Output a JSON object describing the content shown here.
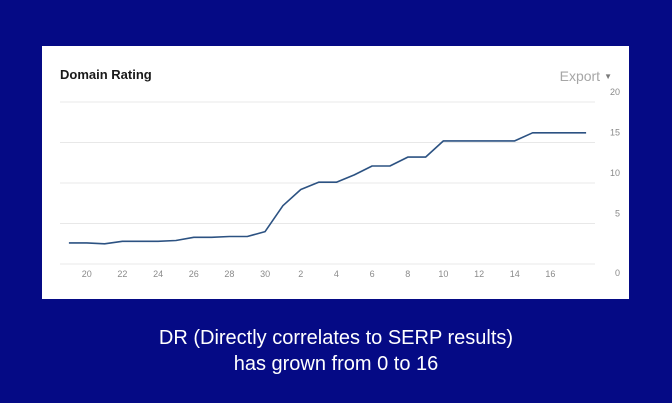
{
  "card": {
    "title": "Domain Rating",
    "export_label": "Export",
    "export_caret": "▼"
  },
  "caption": {
    "line1": "DR (Directly correlates to SERP results)",
    "line2": "has grown from 0 to 16"
  },
  "colors": {
    "background": "#050a85",
    "line": "#2c5282",
    "grid": "#e8e8e8"
  },
  "chart_data": {
    "type": "line",
    "title": "Domain Rating",
    "xlabel": "",
    "ylabel": "",
    "ylim": [
      0,
      20
    ],
    "y_ticks": [
      20,
      15,
      10,
      5,
      0
    ],
    "y_axis_side": "right",
    "grid": true,
    "x_tick_labels": [
      "20",
      "22",
      "24",
      "26",
      "28",
      "30",
      "2",
      "4",
      "6",
      "8",
      "10",
      "12",
      "14",
      "16"
    ],
    "x_tick_index": [
      1,
      3,
      5,
      7,
      9,
      11,
      13,
      15,
      17,
      19,
      21,
      23,
      25,
      27
    ],
    "values": [
      2.6,
      2.6,
      2.5,
      2.8,
      2.8,
      2.8,
      2.9,
      3.3,
      3.3,
      3.4,
      3.4,
      4.0,
      7.2,
      9.2,
      10.1,
      10.1,
      11.0,
      12.1,
      12.1,
      13.2,
      13.2,
      15.2,
      15.2,
      15.2,
      15.2,
      15.2,
      16.2,
      16.2,
      16.2,
      16.2
    ]
  }
}
